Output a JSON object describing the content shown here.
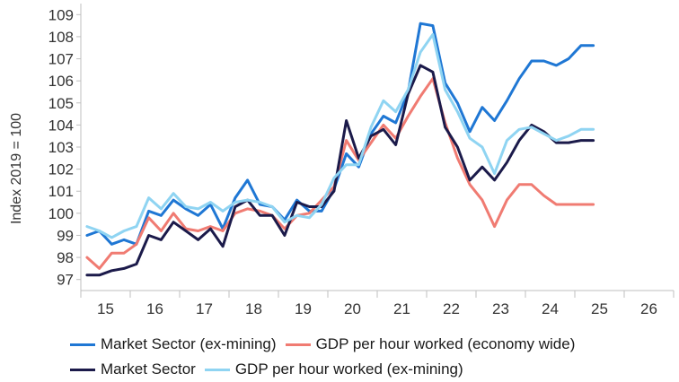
{
  "chart_data": {
    "type": "line",
    "title": "",
    "xlabel": "",
    "ylabel": "Index 2019 = 100",
    "ylim": [
      96.5,
      109.5
    ],
    "yticks": [
      97,
      98,
      99,
      100,
      101,
      102,
      103,
      104,
      105,
      106,
      107,
      108,
      109
    ],
    "xlim": [
      14.5,
      26.5
    ],
    "xticks": [
      "15",
      "16",
      "17",
      "18",
      "19",
      "20",
      "21",
      "22",
      "23",
      "24",
      "25",
      "26"
    ],
    "grid": false,
    "legend_position": "bottom",
    "series": [
      {
        "name": "Market Sector (ex-mining)",
        "color": "#1f77d4",
        "x": [
          14.625,
          14.875,
          15.125,
          15.375,
          15.625,
          15.875,
          16.125,
          16.375,
          16.625,
          16.875,
          17.125,
          17.375,
          17.625,
          17.875,
          18.125,
          18.375,
          18.625,
          18.875,
          19.125,
          19.375,
          19.625,
          19.875,
          20.125,
          20.375,
          20.625,
          20.875,
          21.125,
          21.375,
          21.625,
          21.875,
          22.125,
          22.375,
          22.625,
          22.875,
          23.125,
          23.375,
          23.625,
          23.875,
          24.125,
          24.375,
          24.625,
          24.875
        ],
        "y": [
          99.0,
          99.2,
          98.6,
          98.8,
          98.6,
          100.1,
          99.9,
          100.6,
          100.2,
          99.9,
          100.4,
          99.3,
          100.7,
          101.5,
          100.4,
          100.3,
          99.7,
          100.6,
          100.1,
          100.1,
          101.1,
          102.7,
          102.1,
          103.6,
          104.4,
          104.1,
          105.5,
          108.6,
          108.5,
          105.9,
          105.0,
          103.7,
          104.8,
          104.2,
          105.1,
          106.1,
          106.9,
          106.9,
          106.7,
          107.0,
          107.6,
          107.6
        ]
      },
      {
        "name": "GDP per hour worked (economy wide)",
        "color": "#f07b72",
        "x": [
          14.625,
          14.875,
          15.125,
          15.375,
          15.625,
          15.875,
          16.125,
          16.375,
          16.625,
          16.875,
          17.125,
          17.375,
          17.625,
          17.875,
          18.125,
          18.375,
          18.625,
          18.875,
          19.125,
          19.375,
          19.625,
          19.875,
          20.125,
          20.375,
          20.625,
          20.875,
          21.125,
          21.375,
          21.625,
          21.875,
          22.125,
          22.375,
          22.625,
          22.875,
          23.125,
          23.375,
          23.625,
          23.875,
          24.125,
          24.375,
          24.625,
          24.875
        ],
        "y": [
          98.0,
          97.5,
          98.2,
          98.2,
          98.6,
          99.8,
          99.2,
          100.0,
          99.3,
          99.2,
          99.4,
          99.2,
          100.0,
          100.2,
          100.1,
          99.9,
          99.3,
          99.9,
          100.0,
          100.6,
          101.2,
          103.3,
          102.4,
          103.2,
          104.0,
          103.4,
          104.4,
          105.3,
          106.1,
          104.1,
          102.5,
          101.3,
          100.6,
          99.4,
          100.6,
          101.3,
          101.3,
          100.8,
          100.4,
          100.4,
          100.4,
          100.4
        ]
      },
      {
        "name": "Market Sector",
        "color": "#1b1a4a",
        "x": [
          14.625,
          14.875,
          15.125,
          15.375,
          15.625,
          15.875,
          16.125,
          16.375,
          16.625,
          16.875,
          17.125,
          17.375,
          17.625,
          17.875,
          18.125,
          18.375,
          18.625,
          18.875,
          19.125,
          19.375,
          19.625,
          19.875,
          20.125,
          20.375,
          20.625,
          20.875,
          21.125,
          21.375,
          21.625,
          21.875,
          22.125,
          22.375,
          22.625,
          22.875,
          23.125,
          23.375,
          23.625,
          23.875,
          24.125,
          24.375,
          24.625,
          24.875
        ],
        "y": [
          97.2,
          97.2,
          97.4,
          97.5,
          97.7,
          99.0,
          98.8,
          99.6,
          99.2,
          98.8,
          99.3,
          98.5,
          100.3,
          100.6,
          99.9,
          99.9,
          99.0,
          100.5,
          100.3,
          100.3,
          101.0,
          104.2,
          102.5,
          103.5,
          103.8,
          103.1,
          105.4,
          106.7,
          106.4,
          103.9,
          103.0,
          101.5,
          102.1,
          101.5,
          102.3,
          103.3,
          104.0,
          103.7,
          103.2,
          103.2,
          103.3,
          103.3
        ]
      },
      {
        "name": "GDP per hour worked (ex-mining)",
        "color": "#8fd4f2",
        "x": [
          14.625,
          14.875,
          15.125,
          15.375,
          15.625,
          15.875,
          16.125,
          16.375,
          16.625,
          16.875,
          17.125,
          17.375,
          17.625,
          17.875,
          18.125,
          18.375,
          18.625,
          18.875,
          19.125,
          19.375,
          19.625,
          19.875,
          20.125,
          20.375,
          20.625,
          20.875,
          21.125,
          21.375,
          21.625,
          21.875,
          22.125,
          22.375,
          22.625,
          22.875,
          23.125,
          23.375,
          23.625,
          23.875,
          24.125,
          24.375,
          24.625,
          24.875
        ],
        "y": [
          99.4,
          99.2,
          98.9,
          99.2,
          99.4,
          100.7,
          100.2,
          100.9,
          100.3,
          100.2,
          100.5,
          100.1,
          100.5,
          100.6,
          100.5,
          100.3,
          99.6,
          99.9,
          99.8,
          100.4,
          101.6,
          102.2,
          102.2,
          103.9,
          105.1,
          104.6,
          105.6,
          107.3,
          108.1,
          105.6,
          104.6,
          103.4,
          103.0,
          101.8,
          103.3,
          103.8,
          103.9,
          103.6,
          103.3,
          103.5,
          103.8,
          103.8
        ]
      }
    ],
    "legend_rows": [
      [
        {
          "label": "Market Sector (ex-mining)",
          "color": "#1f77d4"
        },
        {
          "label": "GDP per hour worked (economy wide)",
          "color": "#f07b72"
        }
      ],
      [
        {
          "label": "Market Sector",
          "color": "#1b1a4a"
        },
        {
          "label": "GDP per hour worked (ex-mining)",
          "color": "#8fd4f2"
        }
      ]
    ]
  }
}
